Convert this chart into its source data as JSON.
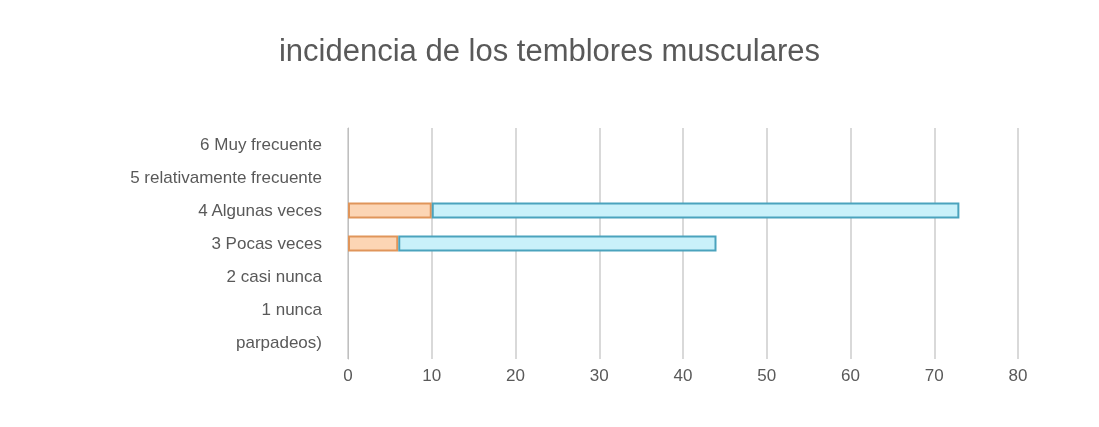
{
  "chart_data": {
    "type": "bar",
    "orientation": "horizontal",
    "stacked": true,
    "title": "incidencia de los temblores musculares",
    "categories": [
      "6 Muy frecuente",
      "5 relativamente frecuente",
      "4 Algunas veces",
      "3 Pocas veces",
      "2 casi nunca",
      "1 nunca",
      "parpadeos)"
    ],
    "series": [
      {
        "color": "#fcd5b4",
        "values": [
          0,
          0,
          10,
          6,
          0,
          0,
          null
        ]
      },
      {
        "color": "#c9f1fa",
        "values": [
          0,
          0,
          63,
          38,
          0,
          0,
          null
        ]
      }
    ],
    "xlim": [
      0,
      80
    ],
    "xticks": [
      0,
      10,
      20,
      30,
      40,
      50,
      60,
      70,
      80
    ],
    "grid": "x"
  }
}
